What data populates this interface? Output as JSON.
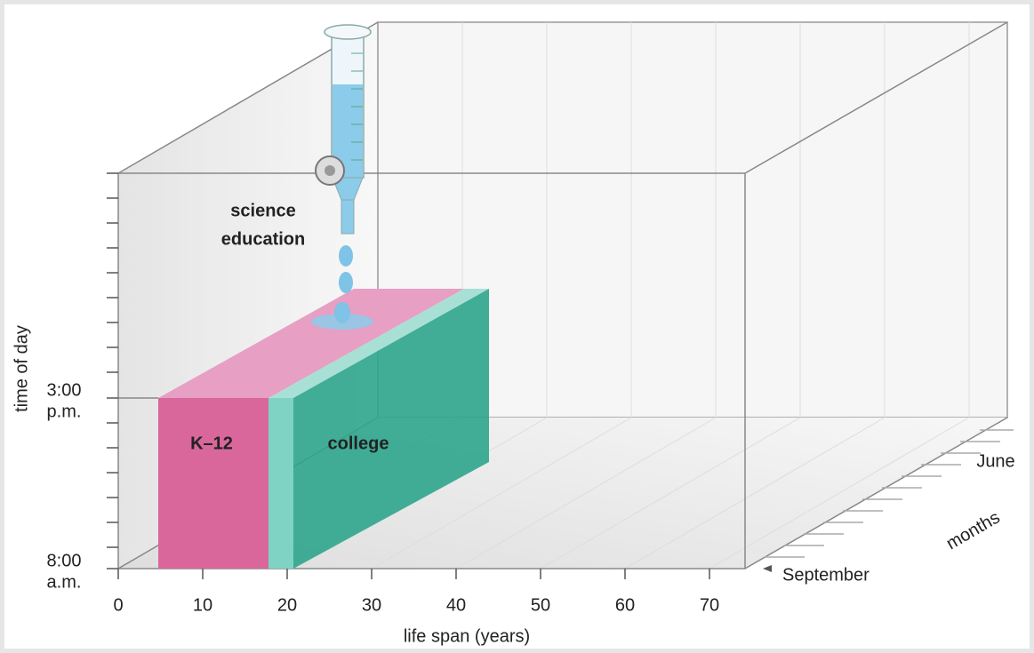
{
  "diagram": {
    "time_axis": {
      "label": "time of day",
      "top_tick": [
        "3:00",
        "p.m."
      ],
      "bottom_tick": [
        "8:00",
        "a.m."
      ]
    },
    "life_axis": {
      "label": "life span (years)",
      "ticks": [
        0,
        10,
        20,
        30,
        40,
        50,
        60,
        70
      ]
    },
    "months_axis": {
      "label": "months",
      "start": "September",
      "end": "June"
    },
    "blocks": [
      {
        "label": "K–12"
      },
      {
        "label": "college"
      }
    ],
    "source": [
      "science",
      "education"
    ]
  }
}
